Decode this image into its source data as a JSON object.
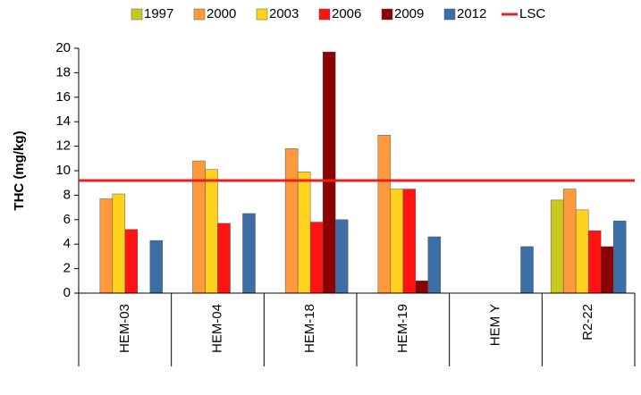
{
  "chart_data": {
    "type": "bar",
    "y_label": "THC (mg/kg)",
    "categories": [
      "HEM-03",
      "HEM-04",
      "HEM-18",
      "HEM-19",
      "HEM Y",
      "R2-22"
    ],
    "series": [
      {
        "name": "1997",
        "color": "#c8c81e",
        "values": [
          null,
          null,
          null,
          null,
          null,
          7.6
        ]
      },
      {
        "name": "2000",
        "color": "#ff9a3c",
        "values": [
          7.7,
          10.8,
          11.8,
          12.9,
          null,
          8.5
        ]
      },
      {
        "name": "2003",
        "color": "#ffd21e",
        "values": [
          8.1,
          10.1,
          9.9,
          8.5,
          null,
          6.8
        ]
      },
      {
        "name": "2006",
        "color": "#ff1414",
        "values": [
          5.2,
          5.7,
          5.8,
          8.5,
          null,
          5.1
        ]
      },
      {
        "name": "2009",
        "color": "#8b0000",
        "values": [
          null,
          null,
          19.7,
          1.0,
          null,
          3.8
        ]
      },
      {
        "name": "2012",
        "color": "#3d6ea5",
        "values": [
          4.3,
          6.5,
          6.0,
          4.6,
          3.8,
          5.9
        ]
      }
    ],
    "reference_lines": [
      {
        "name": "LSC",
        "value": 9.2,
        "color": "#e8201e"
      }
    ],
    "ylim": [
      0,
      20
    ],
    "yticks": [
      0,
      2,
      4,
      6,
      8,
      10,
      12,
      14,
      16,
      18,
      20
    ],
    "legend": "top"
  }
}
